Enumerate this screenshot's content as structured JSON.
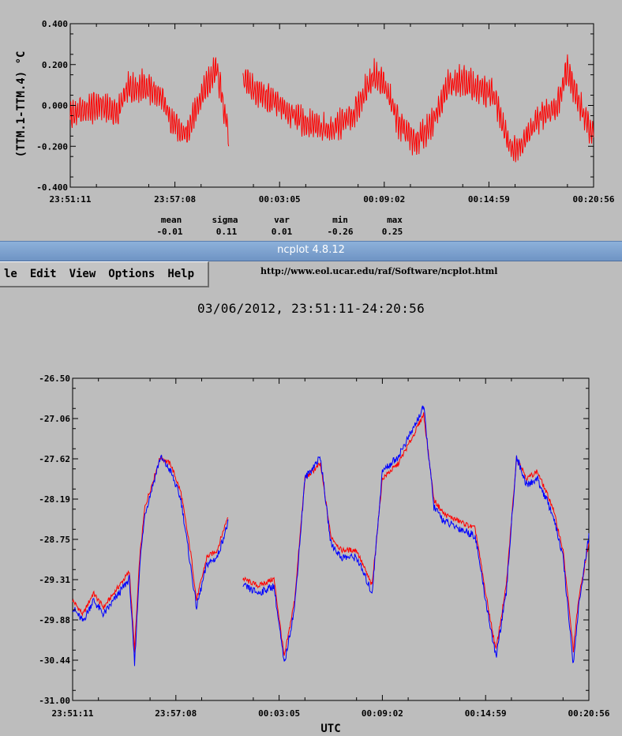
{
  "window": {
    "title": "ncplot 4.8.12",
    "url": "http://www.eol.ucar.edu/raf/Software/ncplot.html",
    "date_range_title": "03/06/2012, 23:51:11-24:20:56"
  },
  "menu": {
    "items": [
      "le",
      "Edit",
      "View",
      "Options",
      "Help"
    ]
  },
  "stats": {
    "labels": [
      "mean",
      "sigma",
      "var",
      "min",
      "max"
    ],
    "values": [
      "-0.01",
      "0.11",
      "0.01",
      "-0.26",
      "0.25"
    ]
  },
  "colors": {
    "background": "#bdbdbd",
    "red_series": "#ff0000",
    "blue_series": "#0000ff",
    "titlebar": "#7da2d0"
  },
  "chart_data": [
    {
      "type": "line",
      "title": "",
      "xlabel": "",
      "ylabel": "(TTM.1-TTM.4) °C",
      "ylim": [
        -0.4,
        0.4
      ],
      "yticks": [
        "0.400",
        "0.200",
        "0.000",
        "-0.200",
        "-0.400"
      ],
      "xticks": [
        "23:51:11",
        "23:57:08",
        "00:03:05",
        "00:09:02",
        "00:14:59",
        "00:20:56"
      ],
      "gap": [
        0.303,
        0.33
      ],
      "series": [
        {
          "color": "#ff0000",
          "x": [
            0.0,
            0.03,
            0.06,
            0.09,
            0.11,
            0.14,
            0.17,
            0.2,
            0.22,
            0.25,
            0.28,
            0.303,
            0.33,
            0.36,
            0.4,
            0.43,
            0.46,
            0.5,
            0.54,
            0.58,
            0.6,
            0.63,
            0.66,
            0.69,
            0.72,
            0.75,
            0.78,
            0.81,
            0.84,
            0.86,
            0.9,
            0.93,
            0.95,
            0.97,
            1.0
          ],
          "values": [
            -0.05,
            -0.02,
            0.0,
            -0.04,
            0.08,
            0.1,
            0.05,
            -0.1,
            -0.15,
            0.05,
            0.18,
            -0.15,
            0.12,
            0.06,
            0.0,
            -0.05,
            -0.1,
            -0.12,
            -0.05,
            0.15,
            0.1,
            -0.1,
            -0.18,
            -0.1,
            0.1,
            0.12,
            0.08,
            0.05,
            -0.2,
            -0.2,
            -0.05,
            0.0,
            0.18,
            0.02,
            -0.15
          ],
          "amplitude": 0.07
        }
      ]
    },
    {
      "type": "line",
      "title": "",
      "xlabel": "UTC",
      "ylabel": "",
      "ylim": [
        -31.0,
        -26.5
      ],
      "yticks": [
        "-26.50",
        "-27.06",
        "-27.62",
        "-28.19",
        "-28.75",
        "-29.31",
        "-29.88",
        "-30.44",
        "-31.00"
      ],
      "xticks": [
        "23:51:11",
        "23:57:08",
        "00:03:05",
        "00:09:02",
        "00:14:59",
        "00:20:56"
      ],
      "gap": [
        0.302,
        0.33
      ],
      "series": [
        {
          "color": "#ff0000",
          "x": [
            0.0,
            0.02,
            0.04,
            0.06,
            0.09,
            0.11,
            0.12,
            0.13,
            0.14,
            0.17,
            0.19,
            0.21,
            0.23,
            0.24,
            0.26,
            0.28,
            0.302,
            0.33,
            0.36,
            0.39,
            0.41,
            0.43,
            0.45,
            0.48,
            0.5,
            0.52,
            0.55,
            0.58,
            0.6,
            0.63,
            0.66,
            0.68,
            0.7,
            0.72,
            0.75,
            0.78,
            0.8,
            0.82,
            0.84,
            0.86,
            0.88,
            0.9,
            0.93,
            0.95,
            0.97,
            0.98,
            1.0
          ],
          "values": [
            -29.6,
            -29.8,
            -29.5,
            -29.7,
            -29.4,
            -29.2,
            -30.3,
            -29.0,
            -28.3,
            -27.6,
            -27.7,
            -28.1,
            -29.0,
            -29.6,
            -29.0,
            -28.9,
            -28.4,
            -29.3,
            -29.4,
            -29.3,
            -30.4,
            -29.6,
            -27.9,
            -27.7,
            -28.7,
            -28.9,
            -28.9,
            -29.4,
            -27.9,
            -27.7,
            -27.3,
            -27.0,
            -28.2,
            -28.4,
            -28.5,
            -28.6,
            -29.5,
            -30.3,
            -29.4,
            -27.6,
            -27.9,
            -27.8,
            -28.3,
            -28.9,
            -30.3,
            -29.6,
            -28.8
          ],
          "amplitude": 0.08
        },
        {
          "color": "#0000ff",
          "x": [
            0.0,
            0.02,
            0.04,
            0.06,
            0.09,
            0.11,
            0.12,
            0.13,
            0.14,
            0.17,
            0.19,
            0.21,
            0.23,
            0.24,
            0.26,
            0.28,
            0.302,
            0.33,
            0.36,
            0.39,
            0.41,
            0.43,
            0.45,
            0.48,
            0.5,
            0.52,
            0.55,
            0.58,
            0.6,
            0.63,
            0.66,
            0.68,
            0.7,
            0.72,
            0.75,
            0.78,
            0.8,
            0.82,
            0.84,
            0.86,
            0.88,
            0.9,
            0.93,
            0.95,
            0.97,
            0.98,
            1.0
          ],
          "values": [
            -29.7,
            -29.9,
            -29.6,
            -29.8,
            -29.5,
            -29.3,
            -30.5,
            -29.1,
            -28.4,
            -27.6,
            -27.8,
            -28.2,
            -29.2,
            -29.7,
            -29.1,
            -29.0,
            -28.5,
            -29.4,
            -29.5,
            -29.4,
            -30.5,
            -29.7,
            -27.9,
            -27.6,
            -28.8,
            -29.0,
            -29.0,
            -29.5,
            -27.8,
            -27.6,
            -27.2,
            -26.9,
            -28.3,
            -28.5,
            -28.6,
            -28.7,
            -29.6,
            -30.4,
            -29.5,
            -27.6,
            -28.0,
            -27.9,
            -28.4,
            -29.0,
            -30.5,
            -29.7,
            -28.7
          ],
          "amplitude": 0.12
        }
      ]
    }
  ]
}
